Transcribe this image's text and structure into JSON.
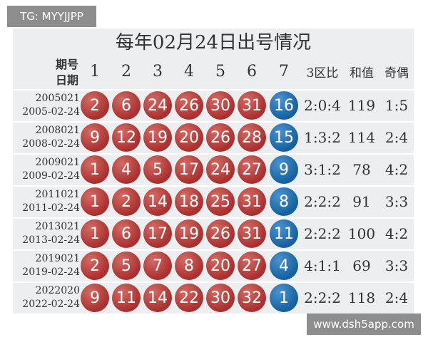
{
  "watermark_top": "TG: MYYJJPP",
  "watermark_bottom": "www.dsh5app.com",
  "title": "每年02月24日出号情况",
  "header": {
    "label": [
      "期号",
      "日期"
    ],
    "columns": [
      "1",
      "2",
      "3",
      "4",
      "5",
      "6",
      "7",
      "3区比",
      "和值",
      "奇偶"
    ]
  },
  "rows": [
    {
      "issue": "2005021",
      "date": "2005-02-24",
      "red": [
        2,
        6,
        24,
        26,
        30,
        31
      ],
      "blue": 16,
      "zone": "2:0:4",
      "sum": 119,
      "parity": "1:5"
    },
    {
      "issue": "2008021",
      "date": "2008-02-24",
      "red": [
        9,
        12,
        19,
        20,
        26,
        28
      ],
      "blue": 15,
      "zone": "1:3:2",
      "sum": 114,
      "parity": "2:4"
    },
    {
      "issue": "2009021",
      "date": "2009-02-24",
      "red": [
        1,
        4,
        5,
        17,
        24,
        27
      ],
      "blue": 9,
      "zone": "3:1:2",
      "sum": 78,
      "parity": "4:2"
    },
    {
      "issue": "2011021",
      "date": "2011-02-24",
      "red": [
        1,
        2,
        14,
        18,
        25,
        31
      ],
      "blue": 8,
      "zone": "2:2:2",
      "sum": 91,
      "parity": "3:3"
    },
    {
      "issue": "2013021",
      "date": "2013-02-24",
      "red": [
        1,
        6,
        17,
        19,
        26,
        31
      ],
      "blue": 11,
      "zone": "2:2:2",
      "sum": 100,
      "parity": "4:2"
    },
    {
      "issue": "2019021",
      "date": "2019-02-24",
      "red": [
        2,
        5,
        7,
        8,
        20,
        27
      ],
      "blue": 4,
      "zone": "4:1:1",
      "sum": 69,
      "parity": "3:3"
    },
    {
      "issue": "2022020",
      "date": "2022-02-24",
      "red": [
        9,
        11,
        14,
        22,
        30,
        32
      ],
      "blue": 1,
      "zone": "2:2:2",
      "sum": 118,
      "parity": "2:4"
    }
  ]
}
